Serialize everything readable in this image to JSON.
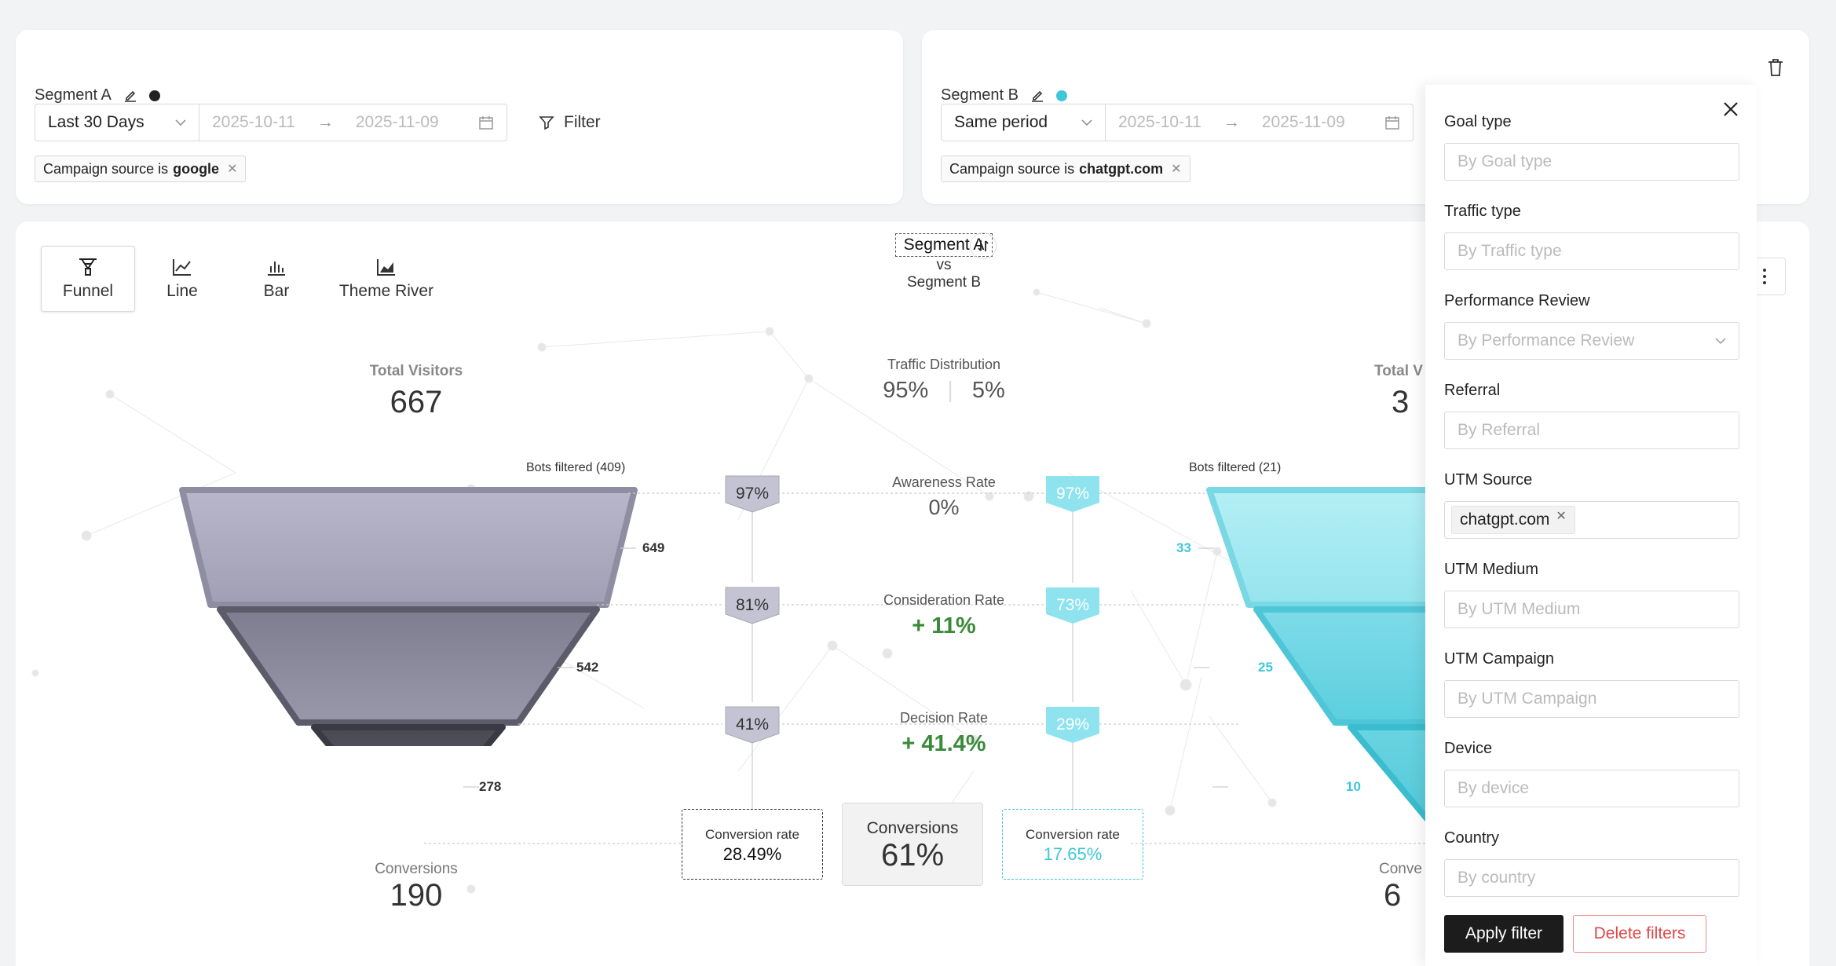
{
  "segment_a": {
    "title": "Segment A",
    "dot_color": "#222222",
    "period": "Last 30 Days",
    "date_start": "2025-10-11",
    "date_end": "2025-11-09",
    "filter_label": "Filter",
    "tag_prefix": "Campaign source is",
    "tag_value": "google"
  },
  "segment_b": {
    "title": "Segment B",
    "dot_color": "#3ec7d8",
    "period": "Same period",
    "date_start": "2025-10-11",
    "date_end": "2025-11-09",
    "tag_prefix": "Campaign source is",
    "tag_value": "chatgpt.com"
  },
  "tabs": [
    {
      "label": "Funnel",
      "icon": "funnel-icon"
    },
    {
      "label": "Line",
      "icon": "line-chart-icon"
    },
    {
      "label": "Bar",
      "icon": "bar-chart-icon"
    },
    {
      "label": "Theme River",
      "icon": "area-chart-icon"
    }
  ],
  "compare": {
    "primary": "Segment A",
    "vs": "vs",
    "secondary": "Segment B"
  },
  "left_funnel": {
    "total_label": "Total Visitors",
    "total_value": "667",
    "bots_label": "Bots filtered (409)",
    "levels": [
      "649",
      "542",
      "278"
    ],
    "rates": [
      "97%",
      "81%",
      "41%"
    ],
    "conv_label": "Conversions",
    "conv_value": "190",
    "conv_rate_label": "Conversion rate",
    "conv_rate_value": "28.49%"
  },
  "right_funnel": {
    "total_label": "Total V",
    "total_value": "3",
    "bots_label": "Bots filtered (21)",
    "levels": [
      "33",
      "25",
      "10"
    ],
    "rates": [
      "97%",
      "73%",
      "29%"
    ],
    "conv_label": "Conve",
    "conv_value": "6",
    "conv_rate_label": "Conversion rate",
    "conv_rate_value": "17.65%"
  },
  "center": {
    "traffic_label": "Traffic Distribution",
    "traffic_a": "95%",
    "traffic_b": "5%",
    "awareness_label": "Awareness Rate",
    "awareness_value": "0%",
    "consideration_label": "Consideration Rate",
    "consideration_value": "+ 11%",
    "decision_label": "Decision Rate",
    "decision_value": "+ 41.4%",
    "conversions_label": "Conversions",
    "conversions_value": "61%"
  },
  "filter_panel": {
    "fields": [
      {
        "label": "Goal type",
        "placeholder": "By Goal type"
      },
      {
        "label": "Traffic type",
        "placeholder": "By Traffic type"
      },
      {
        "label": "Performance Review",
        "placeholder": "By Performance Review"
      },
      {
        "label": "Referral",
        "placeholder": "By Referral"
      },
      {
        "label": "UTM Source",
        "chip": "chatgpt.com"
      },
      {
        "label": "UTM Medium",
        "placeholder": "By UTM Medium"
      },
      {
        "label": "UTM Campaign",
        "placeholder": "By UTM Campaign"
      },
      {
        "label": "Device",
        "placeholder": "By device"
      },
      {
        "label": "Country",
        "placeholder": "By country"
      }
    ],
    "apply_label": "Apply filter",
    "delete_label": "Delete filters"
  }
}
